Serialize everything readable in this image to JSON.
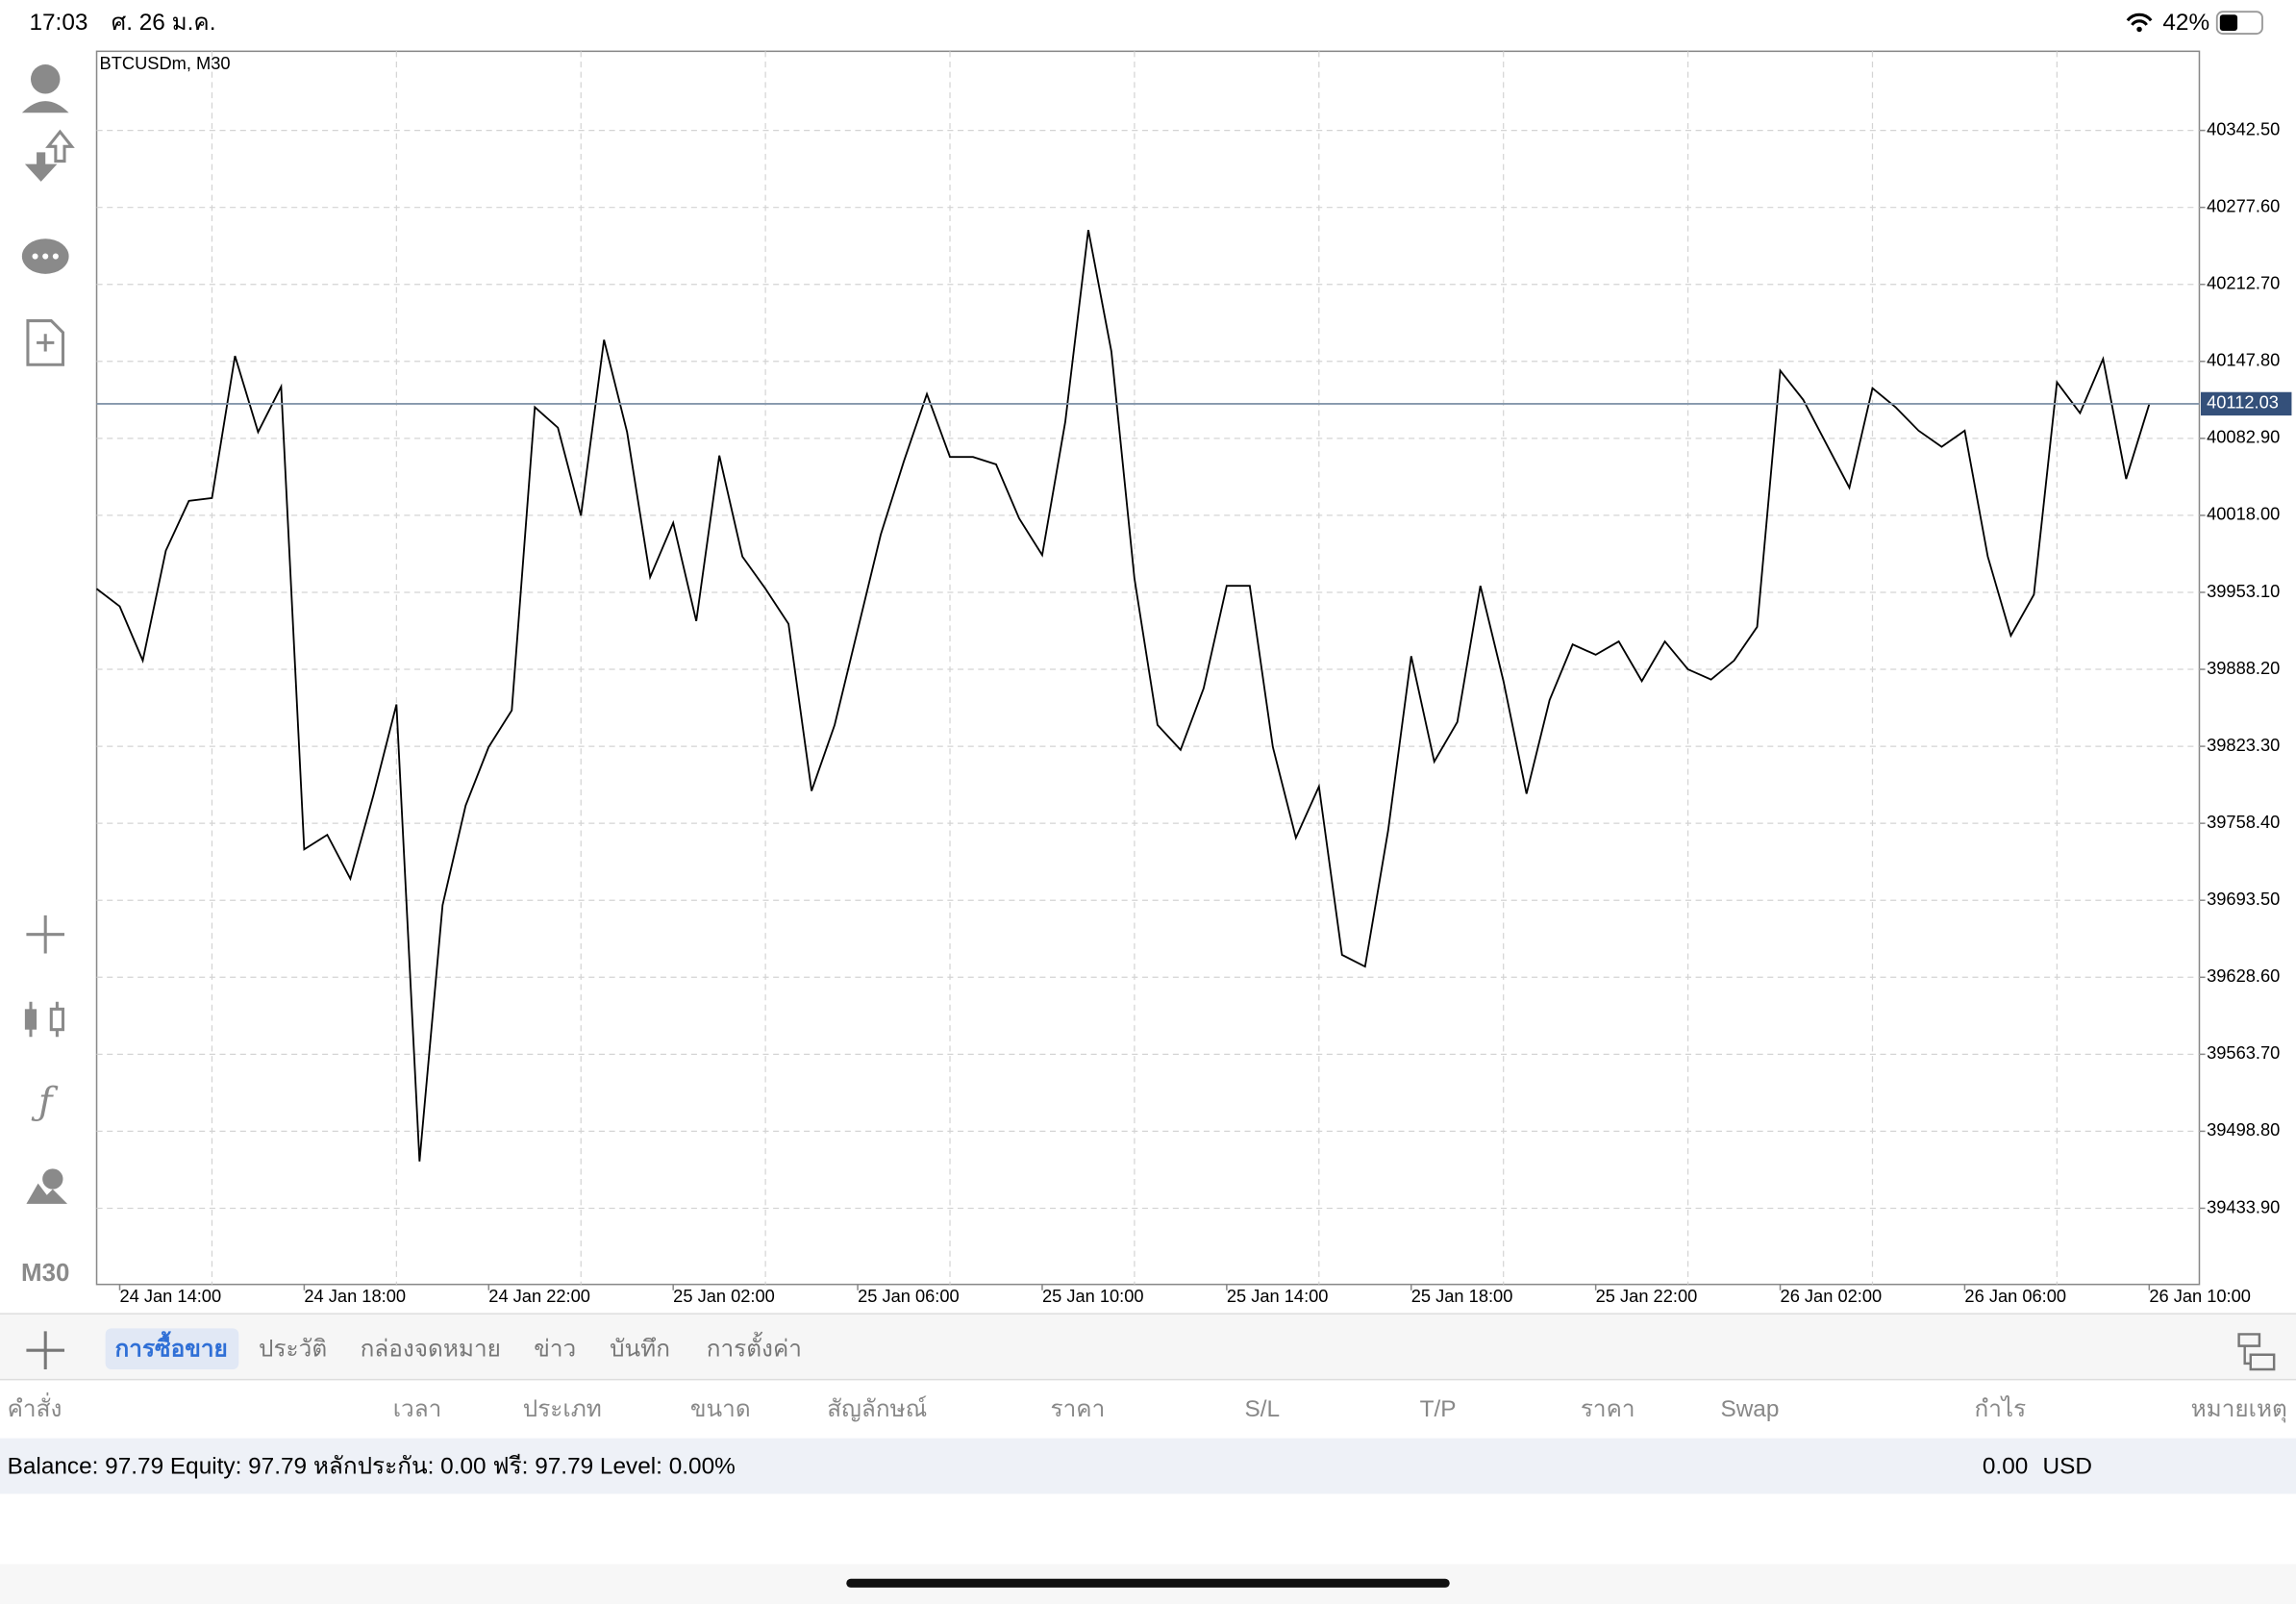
{
  "status_bar": {
    "time": "17:03",
    "date": "ศ. 26 ม.ค.",
    "battery": "42%"
  },
  "sidebar": {
    "timeframe": "M30"
  },
  "chart_data": {
    "type": "line",
    "title": "BTCUSDm, M30",
    "color": "#000000",
    "grid": true,
    "categories": [
      null,
      "24 Jan 14:00",
      null,
      null,
      null,
      null,
      null,
      null,
      null,
      "24 Jan 18:00",
      null,
      null,
      null,
      null,
      null,
      null,
      null,
      "24 Jan 22:00",
      null,
      null,
      null,
      null,
      null,
      null,
      null,
      "25 Jan 02:00",
      null,
      null,
      null,
      null,
      null,
      null,
      null,
      "25 Jan 06:00",
      null,
      null,
      null,
      null,
      null,
      null,
      null,
      "25 Jan 10:00",
      null,
      null,
      null,
      null,
      null,
      null,
      null,
      "25 Jan 14:00",
      null,
      null,
      null,
      null,
      null,
      null,
      null,
      "25 Jan 18:00",
      null,
      null,
      null,
      null,
      null,
      null,
      null,
      "25 Jan 22:00",
      null,
      null,
      null,
      null,
      null,
      null,
      null,
      "26 Jan 02:00",
      null,
      null,
      null,
      null,
      null,
      null,
      null,
      "26 Jan 06:00",
      null,
      null,
      null,
      null,
      null,
      null,
      null,
      "26 Jan 10:00"
    ],
    "values": [
      39956.1,
      39941.3,
      39895.6,
      39988.2,
      40030.2,
      40032.6,
      40152.4,
      40088.2,
      40126.5,
      39736.4,
      39748.7,
      39711.7,
      39782.0,
      39858.6,
      39473.4,
      39689.4,
      39773.4,
      39822.8,
      39853.6,
      40109.2,
      40091.9,
      40017.8,
      40166.0,
      40088.2,
      39966.0,
      40011.7,
      39928.9,
      40068.4,
      39983.3,
      39956.1,
      39926.5,
      39785.7,
      39841.3,
      39921.5,
      40001.8,
      40063.5,
      40120.3,
      40067.2,
      40067.2,
      40061.0,
      40015.4,
      39984.5,
      40096.8,
      40258.6,
      40156.1,
      39964.7,
      39841.3,
      39820.3,
      39872.2,
      39958.6,
      39958.6,
      39822.8,
      39746.2,
      39789.4,
      39647.5,
      39637.6,
      39752.4,
      39899.3,
      39810.4,
      39843.8,
      39958.6,
      39878.3,
      39783.3,
      39862.3,
      39909.2,
      39900.5,
      39911.7,
      39878.3,
      39911.7,
      39888.2,
      39879.6,
      39895.6,
      39924.0,
      40140.0,
      40115.4,
      40078.3,
      40041.3,
      40125.2,
      40109.2,
      40089.4,
      40075.8,
      40089.4,
      39983.3,
      39916.6,
      39951.2,
      40130.2,
      40104.2,
      40149.9,
      40048.7,
      40111.6
    ],
    "current_price": 40112.03,
    "ylim": [
      39369.7,
      40409.2
    ],
    "yticks": [
      {
        "value": 39433.9,
        "label": "39433.90"
      },
      {
        "value": 39498.8,
        "label": "39498.80"
      },
      {
        "value": 39563.7,
        "label": "39563.70"
      },
      {
        "value": 39628.6,
        "label": "39628.60"
      },
      {
        "value": 39693.5,
        "label": "39693.50"
      },
      {
        "value": 39758.4,
        "label": "39758.40"
      },
      {
        "value": 39823.3,
        "label": "39823.30"
      },
      {
        "value": 39888.2,
        "label": "39888.20"
      },
      {
        "value": 39953.1,
        "label": "39953.10"
      },
      {
        "value": 40018,
        "label": "40018.00"
      },
      {
        "value": 40082.9,
        "label": "40082.90"
      },
      {
        "value": 40147.8,
        "label": "40147.80"
      },
      {
        "value": 40212.7,
        "label": "40212.70"
      },
      {
        "value": 40277.6,
        "label": "40277.60"
      },
      {
        "value": 40342.5,
        "label": "40342.50"
      }
    ]
  },
  "tabs": [
    "การซื้อขาย",
    "ประวัติ",
    "กล่องจดหมาย",
    "ข่าว",
    "บันทึก",
    "การตั้งค่า"
  ],
  "columns": [
    "คำสั่ง",
    "เวลา",
    "ประเภท",
    "ขนาด",
    "สัญลักษณ์",
    "ราคา",
    "S/L",
    "T/P",
    "ราคา",
    "Swap",
    "กำไร",
    "หมายเหตุ"
  ],
  "summary": {
    "text": "Balance: 97.79 Equity: 97.79 หลักประกัน: 0.00 ฟรี: 97.79 Level: 0.00%",
    "profit": "0.00",
    "currency": "USD"
  }
}
